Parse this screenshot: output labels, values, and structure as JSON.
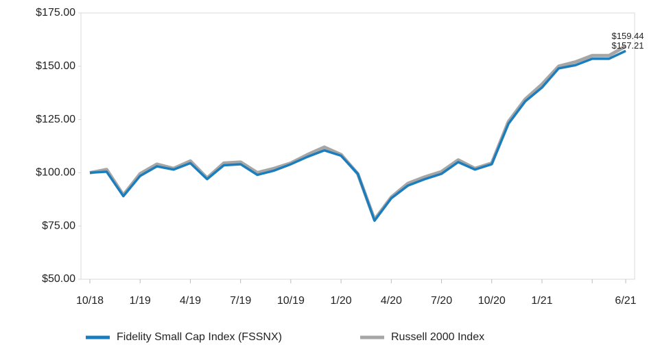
{
  "chart_data": {
    "type": "line",
    "categories": [
      "10/18",
      null,
      null,
      "1/19",
      null,
      null,
      "4/19",
      null,
      null,
      "7/19",
      null,
      null,
      "10/19",
      null,
      null,
      "1/20",
      null,
      null,
      "4/20",
      null,
      null,
      "7/20",
      null,
      null,
      "10/20",
      null,
      null,
      "1/21",
      null,
      null,
      null,
      null,
      "6/21"
    ],
    "series": [
      {
        "name": "Russell 2000 Index",
        "color": "#a6a6a6",
        "values": [
          100,
          101.5,
          89.5,
          99.5,
          104,
          102,
          105.5,
          97.5,
          104.5,
          105,
          100,
          102,
          104.5,
          108.5,
          112,
          108.5,
          99.5,
          78,
          88.5,
          95,
          98,
          100.5,
          106,
          102,
          104.5,
          124,
          134.5,
          141.5,
          150,
          152,
          155,
          155,
          159.44
        ],
        "value_labels": [
          null,
          null,
          null,
          null,
          null,
          null,
          null,
          null,
          null,
          null,
          null,
          null,
          null,
          null,
          null,
          null,
          null,
          null,
          null,
          null,
          null,
          null,
          null,
          null,
          null,
          null,
          null,
          null,
          null,
          null,
          null,
          null,
          "$159.44"
        ]
      },
      {
        "name": "Fidelity Small Cap Index (FSSNX)",
        "color": "#1a7dbd",
        "values": [
          100,
          100.5,
          89,
          98.5,
          103,
          101.5,
          104.5,
          97,
          103.5,
          104,
          99,
          101,
          104,
          107.5,
          110.5,
          108,
          99.5,
          77.5,
          88,
          94,
          97,
          99.5,
          105,
          101.5,
          104,
          123,
          133.5,
          140,
          149,
          150.5,
          153.5,
          153.5,
          157.21
        ],
        "value_labels": [
          null,
          null,
          null,
          null,
          null,
          null,
          null,
          null,
          null,
          null,
          null,
          null,
          null,
          null,
          null,
          null,
          null,
          null,
          null,
          null,
          null,
          null,
          null,
          null,
          null,
          null,
          null,
          null,
          null,
          null,
          null,
          null,
          "$157.21"
        ]
      }
    ],
    "ylim": [
      50,
      175
    ],
    "yticks": [
      {
        "value": 50,
        "label": "$50.00"
      },
      {
        "value": 75,
        "label": "$75.00"
      },
      {
        "value": 100,
        "label": "$100.00"
      },
      {
        "value": 125,
        "label": "$125.00"
      },
      {
        "value": 150,
        "label": "$150.00"
      },
      {
        "value": 175,
        "label": "$175.00"
      }
    ],
    "legend": "bottom"
  }
}
